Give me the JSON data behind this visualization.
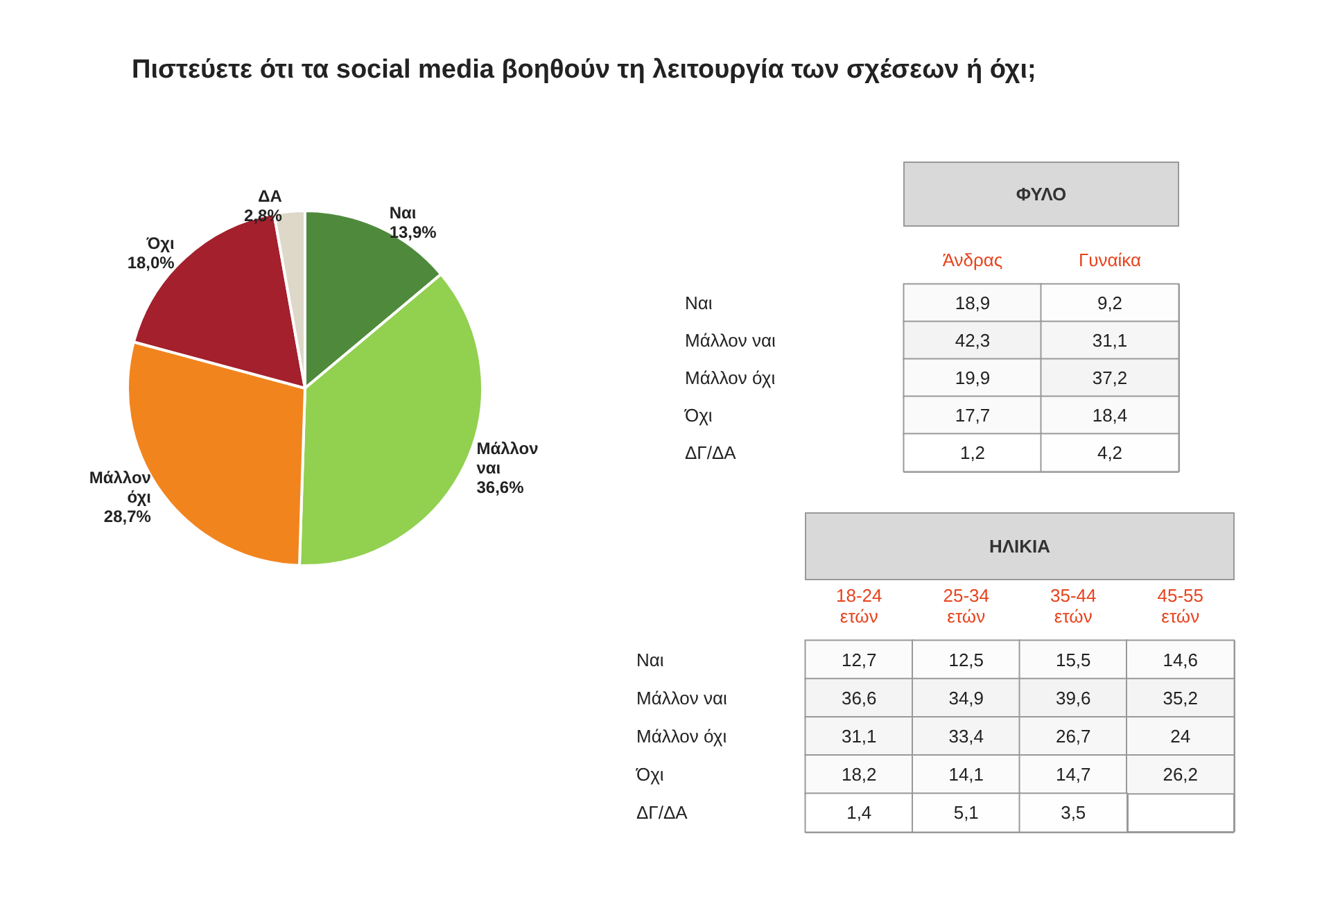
{
  "chart_data": [
    {
      "type": "pie",
      "title": "Πιστεύετε ότι τα social media βοηθούν τη λειτουργία των σχέσεων ή όχι;",
      "categories": [
        "Ναι",
        "Μάλλον ναι",
        "Μάλλον όχι",
        "Όχι",
        "ΔΑ"
      ],
      "values": [
        13.9,
        36.6,
        28.7,
        18.0,
        2.8
      ],
      "value_labels": [
        "13,9%",
        "36,6%",
        "28,7%",
        "18,0%",
        "2,8%"
      ],
      "colors": [
        "#4f8a3c",
        "#92d050",
        "#f2841e",
        "#a3202c",
        "#ddd8c8"
      ]
    },
    {
      "type": "heatmap",
      "title": "ΦΥΛΟ",
      "categories": [
        "Άνδρας",
        "Γυναίκα"
      ],
      "y_categories": [
        "Ναι",
        "Μάλλον ναι",
        "Μάλλον όχι",
        "Όχι",
        "ΔΓ/ΔΑ"
      ],
      "cells": [
        [
          18.9,
          9.2
        ],
        [
          42.3,
          31.1
        ],
        [
          19.9,
          37.2
        ],
        [
          17.7,
          18.4
        ],
        [
          1.2,
          4.2
        ]
      ],
      "cell_labels": [
        [
          "18,9",
          "9,2"
        ],
        [
          "42,3",
          "31,1"
        ],
        [
          "19,9",
          "37,2"
        ],
        [
          "17,7",
          "18,4"
        ],
        [
          "1,2",
          "4,2"
        ]
      ]
    },
    {
      "type": "heatmap",
      "title": "ΗΛΙΚΙΑ",
      "categories": [
        "18-24 ετών",
        "25-34 ετών",
        "35-44 ετών",
        "45-55 ετών"
      ],
      "y_categories": [
        "Ναι",
        "Μάλλον ναι",
        "Μάλλον όχι",
        "Όχι",
        "ΔΓ/ΔΑ"
      ],
      "cells": [
        [
          12.7,
          12.5,
          15.5,
          14.6
        ],
        [
          36.6,
          34.9,
          39.6,
          35.2
        ],
        [
          31.1,
          33.4,
          26.7,
          24
        ],
        [
          18.2,
          14.1,
          14.7,
          26.2
        ],
        [
          1.4,
          5.1,
          3.5,
          null
        ]
      ],
      "cell_labels": [
        [
          "12,7",
          "12,5",
          "15,5",
          "14,6"
        ],
        [
          "36,6",
          "34,9",
          "39,6",
          "35,2"
        ],
        [
          "31,1",
          "33,4",
          "26,7",
          "24"
        ],
        [
          "18,2",
          "14,1",
          "14,7",
          "26,2"
        ],
        [
          "1,4",
          "5,1",
          "3,5",
          null
        ]
      ]
    }
  ]
}
